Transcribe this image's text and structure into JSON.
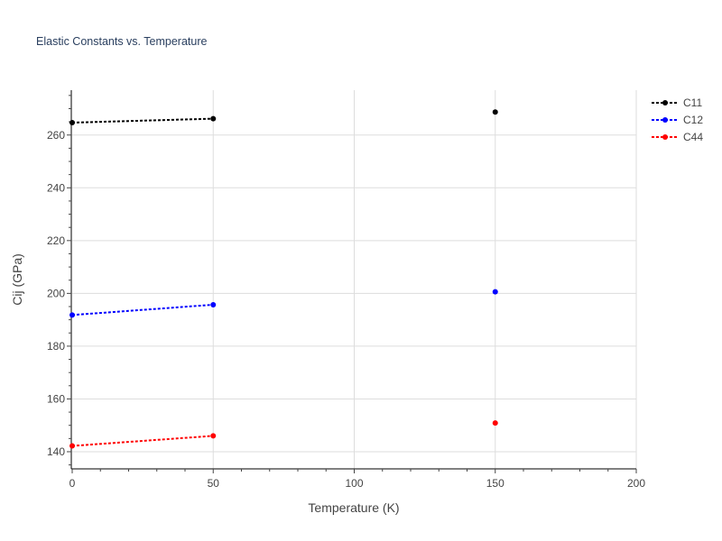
{
  "chart_data": {
    "type": "line",
    "title": "Elastic Constants vs. Temperature",
    "xlabel": "Temperature (K)",
    "ylabel": "Cij (GPa)",
    "xlim": [
      0,
      200
    ],
    "ylim": [
      133.5,
      277
    ],
    "x_ticks": [
      0,
      50,
      100,
      150,
      200
    ],
    "y_ticks": [
      140,
      160,
      180,
      200,
      220,
      240,
      260
    ],
    "grid": true,
    "legend_position": "top-right",
    "series": [
      {
        "name": "C11",
        "color": "#000000",
        "x": [
          0,
          50,
          150
        ],
        "y": [
          264.7,
          266.2,
          268.7
        ]
      },
      {
        "name": "C12",
        "color": "#0000ff",
        "x": [
          0,
          50,
          150
        ],
        "y": [
          191.8,
          195.7,
          200.6
        ]
      },
      {
        "name": "C44",
        "color": "#ff0000",
        "x": [
          0,
          50,
          150
        ],
        "y": [
          142.2,
          146.0,
          150.9
        ]
      }
    ]
  }
}
